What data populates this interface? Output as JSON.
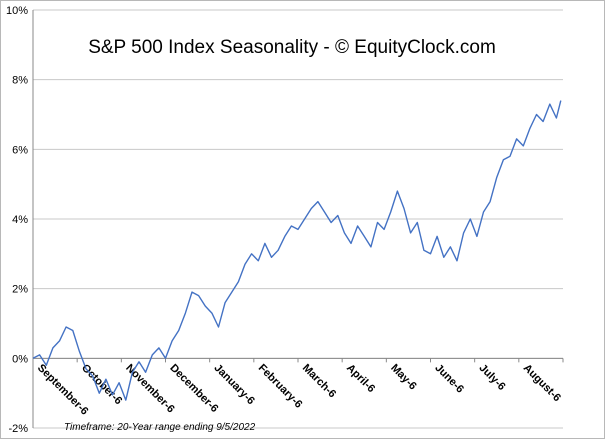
{
  "chart_data": {
    "type": "line",
    "title": "S&P 500 Index Seasonality - © EquityClock.com",
    "footnote": "Timeframe: 20-Year range ending 9/5/2022",
    "xlabel": "",
    "ylabel": "",
    "ylim": [
      -2,
      10
    ],
    "y_tick_labels": [
      "-2%",
      "0%",
      "2%",
      "4%",
      "6%",
      "8%",
      "10%"
    ],
    "categories": [
      "September-6",
      "October-6",
      "November-6",
      "December-6",
      "January-6",
      "February-6",
      "March-6",
      "April-6",
      "May-6",
      "June-6",
      "July-6",
      "August-6"
    ],
    "grid": true,
    "line_color": "#4472c4",
    "series": [
      {
        "name": "S&P 500 Index Seasonality",
        "x": [
          0,
          0.15,
          0.3,
          0.45,
          0.6,
          0.75,
          0.9,
          1.05,
          1.2,
          1.35,
          1.5,
          1.65,
          1.8,
          1.95,
          2.1,
          2.25,
          2.4,
          2.55,
          2.7,
          2.85,
          3.0,
          3.15,
          3.3,
          3.45,
          3.6,
          3.75,
          3.9,
          4.05,
          4.2,
          4.35,
          4.5,
          4.65,
          4.8,
          4.95,
          5.1,
          5.25,
          5.4,
          5.55,
          5.7,
          5.85,
          6.0,
          6.15,
          6.3,
          6.45,
          6.6,
          6.75,
          6.9,
          7.05,
          7.2,
          7.35,
          7.5,
          7.65,
          7.8,
          7.95,
          8.1,
          8.25,
          8.4,
          8.55,
          8.7,
          8.85,
          9.0,
          9.15,
          9.3,
          9.45,
          9.6,
          9.75,
          9.9,
          10.05,
          10.2,
          10.35,
          10.5,
          10.65,
          10.8,
          10.95,
          11.1,
          11.25,
          11.4,
          11.55,
          11.7,
          11.85,
          11.95
        ],
        "y": [
          0,
          0.1,
          -0.2,
          0.3,
          0.5,
          0.9,
          0.8,
          0.2,
          -0.3,
          -0.5,
          -1.0,
          -0.6,
          -1.05,
          -0.7,
          -1.2,
          -0.4,
          -0.1,
          -0.4,
          0.1,
          0.3,
          0.0,
          0.5,
          0.8,
          1.3,
          1.9,
          1.8,
          1.5,
          1.3,
          0.9,
          1.6,
          1.9,
          2.2,
          2.7,
          3.0,
          2.8,
          3.3,
          2.9,
          3.1,
          3.5,
          3.8,
          3.7,
          4.0,
          4.3,
          4.5,
          4.2,
          3.9,
          4.1,
          3.6,
          3.3,
          3.8,
          3.5,
          3.2,
          3.9,
          3.7,
          4.2,
          4.8,
          4.3,
          3.6,
          3.9,
          3.1,
          3.0,
          3.5,
          2.9,
          3.2,
          2.8,
          3.6,
          4.0,
          3.5,
          4.2,
          4.5,
          5.2,
          5.7,
          5.8,
          6.3,
          6.1,
          6.6,
          7.0,
          6.8,
          7.3,
          6.9,
          7.4
        ]
      }
    ]
  }
}
